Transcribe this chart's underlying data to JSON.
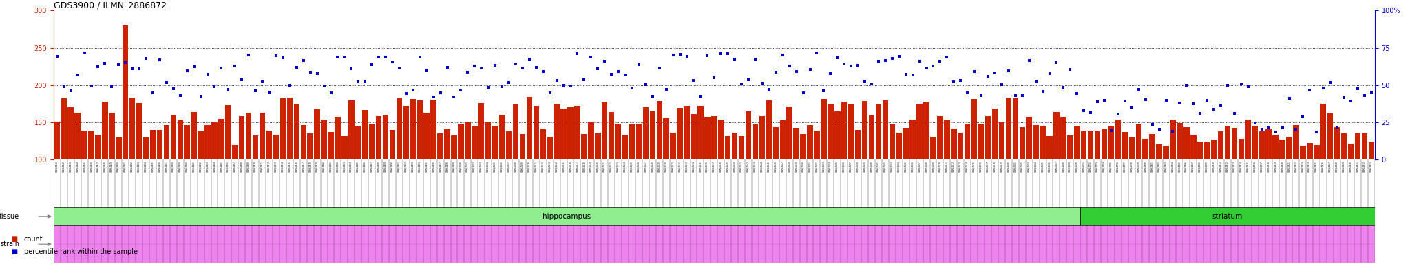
{
  "title": "GDS3900 / ILMN_2886872",
  "title_fontsize": 9,
  "background_color": "#ffffff",
  "bar_color": "#cc2200",
  "dot_color": "#0000cc",
  "left_ylim": [
    100,
    300
  ],
  "left_yticks": [
    100,
    150,
    200,
    250,
    300
  ],
  "right_ylim": [
    0,
    100
  ],
  "right_yticks": [
    0,
    25,
    50,
    75,
    100
  ],
  "right_yticklabels": [
    "0",
    "25",
    "50",
    "75",
    "100%"
  ],
  "grid_levels": [
    150,
    200,
    250
  ],
  "tissue_hipp_color": "#90ee90",
  "tissue_stri_color": "#32cd32",
  "strain_color": "#ee82ee",
  "gray_color": "#c8c8c8",
  "label_tissue": "tissue",
  "label_strain": "strain",
  "label_hippocampus": "hippocampus",
  "label_striatum": "striatum",
  "legend_count": "count",
  "legend_percentile": "percentile rank within the sample",
  "n_hipp": 150,
  "n_stri": 43,
  "sample_ids_hipp": [
    "GSM651441",
    "GSM651442",
    "GSM651443",
    "GSM651444",
    "GSM651445",
    "GSM651446",
    "GSM651447",
    "GSM651448",
    "GSM651449",
    "GSM651450",
    "GSM651451",
    "GSM651452",
    "GSM651453",
    "GSM651454",
    "GSM651455",
    "GSM651456",
    "GSM651457",
    "GSM651458",
    "GSM651459",
    "GSM651460",
    "GSM651461",
    "GSM651462",
    "GSM651463",
    "GSM651464",
    "GSM651465",
    "GSM651466",
    "GSM651467",
    "GSM651468",
    "GSM651469",
    "GSM651470",
    "GSM651471",
    "GSM651472",
    "GSM651473",
    "GSM651474",
    "GSM651475",
    "GSM651476",
    "GSM651477",
    "GSM651478",
    "GSM651479",
    "GSM651480",
    "GSM651481",
    "GSM651482",
    "GSM651483",
    "GSM651484",
    "GSM651485",
    "GSM651486",
    "GSM651487",
    "GSM651488",
    "GSM651489",
    "GSM651490",
    "GSM651491",
    "GSM651492",
    "GSM651493",
    "GSM651494",
    "GSM651495",
    "GSM651496",
    "GSM651497",
    "GSM651498",
    "GSM651499",
    "GSM651500",
    "GSM651501",
    "GSM651502",
    "GSM651503",
    "GSM651504",
    "GSM651505",
    "GSM651506",
    "GSM651507",
    "GSM651508",
    "GSM651509",
    "GSM651510",
    "GSM651511",
    "GSM651512",
    "GSM651513",
    "GSM651514",
    "GSM651515",
    "GSM651516",
    "GSM651517",
    "GSM651518",
    "GSM651519",
    "GSM651520",
    "GSM651521",
    "GSM651522",
    "GSM651523",
    "GSM651524",
    "GSM651525",
    "GSM651526",
    "GSM651527",
    "GSM651528",
    "GSM651529",
    "GSM651530",
    "GSM651531",
    "GSM651532",
    "GSM651533",
    "GSM651534",
    "GSM651535",
    "GSM651536",
    "GSM651537",
    "GSM651538",
    "GSM651539",
    "GSM651540",
    "GSM651541",
    "GSM651542",
    "GSM651543",
    "GSM651544",
    "GSM651545",
    "GSM651546",
    "GSM651547",
    "GSM651548",
    "GSM651549",
    "GSM651550",
    "GSM651551",
    "GSM651552",
    "GSM651553",
    "GSM651554",
    "GSM651555",
    "GSM651556",
    "GSM651557",
    "GSM651558",
    "GSM651559",
    "GSM651560",
    "GSM651561",
    "GSM651562",
    "GSM651563",
    "GSM651564",
    "GSM651565",
    "GSM651566",
    "GSM651567",
    "GSM651568",
    "GSM651569",
    "GSM651570",
    "GSM651571",
    "GSM651572",
    "GSM651573",
    "GSM651574",
    "GSM651575",
    "GSM651576",
    "GSM651577",
    "GSM651578",
    "GSM651579",
    "GSM651580",
    "GSM651581",
    "GSM651582",
    "GSM651583",
    "GSM651584",
    "GSM651585",
    "GSM651586",
    "GSM651587",
    "GSM651588",
    "GSM651589",
    "GSM651590"
  ],
  "sample_ids_stri": [
    "GSM651791",
    "GSM651792",
    "GSM651793",
    "GSM651794",
    "GSM651795",
    "GSM651796",
    "GSM651797",
    "GSM651798",
    "GSM651799",
    "GSM651800",
    "GSM651801",
    "GSM651802",
    "GSM651803",
    "GSM651804",
    "GSM651805",
    "GSM651806",
    "GSM651807",
    "GSM651808",
    "GSM651809",
    "GSM651810",
    "GSM651811",
    "GSM651812",
    "GSM651813",
    "GSM651814",
    "GSM651815",
    "GSM651816",
    "GSM651817",
    "GSM651818",
    "GSM651819",
    "GSM651820",
    "GSM651821",
    "GSM651822",
    "GSM651823",
    "GSM651824",
    "GSM651825",
    "GSM651826",
    "GSM651827",
    "GSM651828",
    "GSM651829",
    "GSM651830",
    "GSM651831",
    "GSM651832",
    "GSM651833"
  ]
}
